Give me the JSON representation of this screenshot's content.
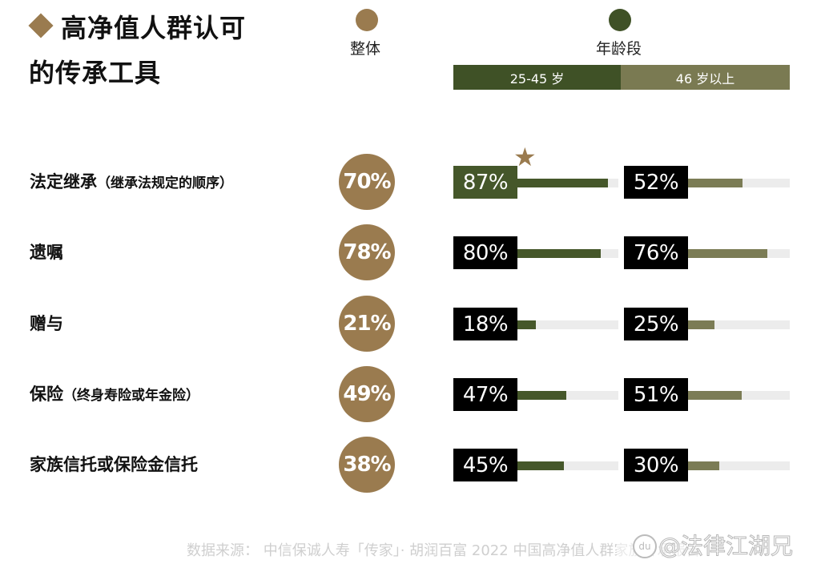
{
  "title": {
    "line1": "高净值人群认可",
    "line2": "的传承工具",
    "marker_icon": "diamond-icon"
  },
  "legend": {
    "overall": {
      "label": "整体",
      "color": "#9a7b4f"
    },
    "age": {
      "label": "年龄段",
      "color": "#3f5126"
    },
    "age_groups": [
      {
        "label": "25-45 岁",
        "color": "#3f5126"
      },
      {
        "label": "46 岁以上",
        "color": "#7a7a52"
      }
    ]
  },
  "colors": {
    "overall": "#9a7b4f",
    "age_25_45": "#45572a",
    "age_46_plus": "#7b7c55",
    "track": "#ececec",
    "highlight_box": "#45572a",
    "value_box": "#000000"
  },
  "rows": [
    {
      "label": "法定继承",
      "sub": "（继承法规定的顺序）",
      "overall": "70%",
      "young": "87%",
      "old": "52%",
      "young_val": 87,
      "old_val": 52,
      "highlight": true
    },
    {
      "label": "遗嘱",
      "sub": "",
      "overall": "78%",
      "young": "80%",
      "old": "76%",
      "young_val": 80,
      "old_val": 76,
      "highlight": false
    },
    {
      "label": "赠与",
      "sub": "",
      "overall": "21%",
      "young": "18%",
      "old": "25%",
      "young_val": 18,
      "old_val": 25,
      "highlight": false
    },
    {
      "label": "保险",
      "sub": "（终身寿险或年金险）",
      "overall": "49%",
      "young": "47%",
      "old": "51%",
      "young_val": 47,
      "old_val": 51,
      "highlight": false
    },
    {
      "label": "家族信托或保险金信托",
      "sub": "",
      "overall": "38%",
      "young": "45%",
      "old": "30%",
      "young_val": 45,
      "old_val": 30,
      "highlight": false
    }
  ],
  "highlight_icon": "star-icon",
  "footer": {
    "source": "数据来源： 中信保诚人寿「传家」· 胡润百富 2022 中国高净值人群家族传承报告",
    "watermark": "@法律江湖兄",
    "watermark_logo": "du"
  },
  "chart_data": {
    "type": "bar",
    "title": "高净值人群认可的传承工具",
    "categories": [
      "法定继承（继承法规定的顺序）",
      "遗嘱",
      "赠与",
      "保险（终身寿险或年金险）",
      "家族信托或保险金信托"
    ],
    "series": [
      {
        "name": "整体",
        "values": [
          70,
          78,
          21,
          49,
          38
        ]
      },
      {
        "name": "25-45 岁",
        "values": [
          87,
          80,
          18,
          47,
          45
        ]
      },
      {
        "name": "46 岁以上",
        "values": [
          52,
          76,
          25,
          51,
          30
        ]
      }
    ],
    "unit": "%",
    "ylim": [
      0,
      100
    ],
    "legend": [
      "整体",
      "年龄段: 25-45 岁",
      "年龄段: 46 岁以上"
    ],
    "annotations": [
      "★ marks 25-45 岁 法定继承 87% (highest)"
    ],
    "source": "数据来源： 中信保诚人寿「传家」· 胡润百富 2022 中国高净值人群家族传承报告",
    "grid": false
  }
}
